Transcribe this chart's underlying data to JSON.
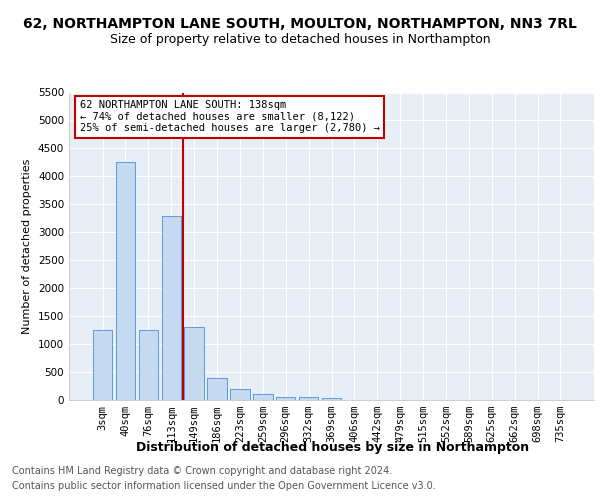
{
  "title": "62, NORTHAMPTON LANE SOUTH, MOULTON, NORTHAMPTON, NN3 7RL",
  "subtitle": "Size of property relative to detached houses in Northampton",
  "xlabel": "Distribution of detached houses by size in Northampton",
  "ylabel": "Number of detached properties",
  "footnote1": "Contains HM Land Registry data © Crown copyright and database right 2024.",
  "footnote2": "Contains public sector information licensed under the Open Government Licence v3.0.",
  "categories": [
    "3sqm",
    "40sqm",
    "76sqm",
    "113sqm",
    "149sqm",
    "186sqm",
    "223sqm",
    "259sqm",
    "296sqm",
    "332sqm",
    "369sqm",
    "406sqm",
    "442sqm",
    "479sqm",
    "515sqm",
    "552sqm",
    "589sqm",
    "625sqm",
    "662sqm",
    "698sqm",
    "735sqm"
  ],
  "values": [
    1250,
    4250,
    1250,
    3300,
    1300,
    400,
    200,
    100,
    60,
    50,
    30,
    0,
    0,
    0,
    0,
    0,
    0,
    0,
    0,
    0,
    0
  ],
  "bar_color": "#c5d9f1",
  "bar_edge_color": "#5b9bd5",
  "vline_pos": 3.5,
  "vline_color": "#c00000",
  "ylim_max": 5500,
  "yticks": [
    0,
    500,
    1000,
    1500,
    2000,
    2500,
    3000,
    3500,
    4000,
    4500,
    5000,
    5500
  ],
  "annotation_line0": "62 NORTHAMPTON LANE SOUTH: 138sqm",
  "annotation_line1": "← 74% of detached houses are smaller (8,122)",
  "annotation_line2": "25% of semi-detached houses are larger (2,780) →",
  "annotation_box_color": "#c00000",
  "title_fontsize": 10,
  "subtitle_fontsize": 9,
  "ylabel_fontsize": 8,
  "xlabel_fontsize": 9,
  "tick_fontsize": 7.5,
  "annot_fontsize": 7.5,
  "footnote_fontsize": 7,
  "bg_color": "#e8eef5",
  "grid_color": "#ffffff",
  "figure_bg": "#ffffff"
}
